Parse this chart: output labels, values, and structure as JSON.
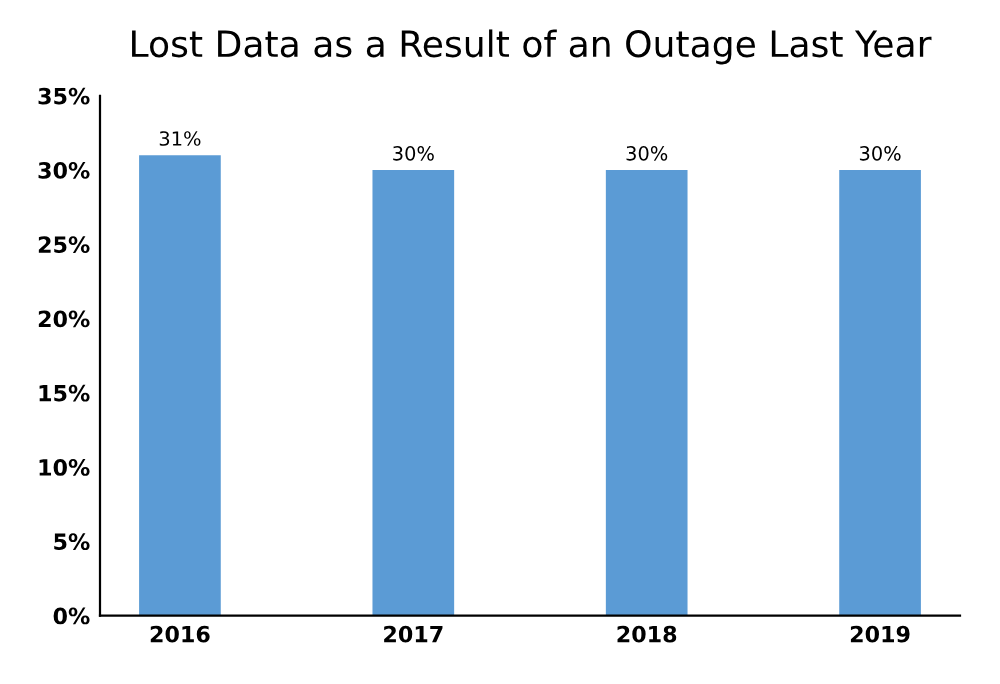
{
  "chart_data": {
    "type": "bar",
    "title": "Lost Data as a Result of an Outage Last Year",
    "categories": [
      "2016",
      "2017",
      "2018",
      "2019"
    ],
    "values": [
      31,
      30,
      30,
      30
    ],
    "value_labels": [
      "31%",
      "30%",
      "30%",
      "30%"
    ],
    "color": "#5b9bd5",
    "ylim": [
      0,
      35
    ],
    "yticks": [
      {
        "value": 0,
        "label": "0%"
      },
      {
        "value": 5,
        "label": "5%"
      },
      {
        "value": 10,
        "label": "10%"
      },
      {
        "value": 15,
        "label": "15%"
      },
      {
        "value": 20,
        "label": "20%"
      },
      {
        "value": 25,
        "label": "25%"
      },
      {
        "value": 30,
        "label": "30%"
      },
      {
        "value": 35,
        "label": "35%"
      }
    ],
    "grid": false
  }
}
